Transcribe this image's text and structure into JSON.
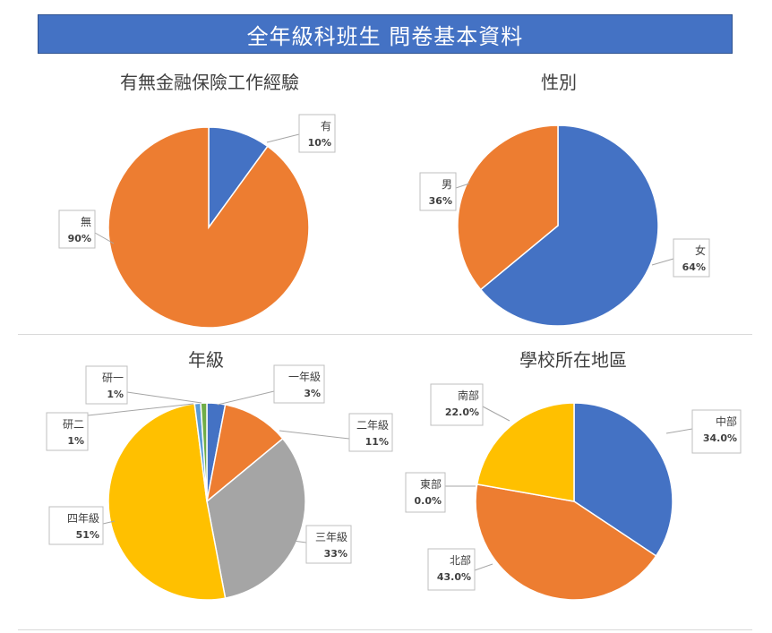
{
  "header": {
    "title": "全年級科班生 問卷基本資料"
  },
  "colors": {
    "blue": "#4472c4",
    "orange": "#ed7d31",
    "gray": "#a5a5a5",
    "yellow": "#ffc000",
    "lightblue": "#5b9bd5",
    "green": "#70ad47",
    "banner": "#4472c4"
  },
  "chart_data": [
    {
      "type": "pie",
      "title": "有無金融保險工作經驗",
      "labels": [
        "有",
        "無"
      ],
      "values": [
        10,
        90
      ],
      "value_labels": [
        "10%",
        "90%"
      ],
      "colors": [
        "#4472c4",
        "#ed7d31"
      ]
    },
    {
      "type": "pie",
      "title": "性別",
      "labels": [
        "女",
        "男"
      ],
      "values": [
        64,
        36
      ],
      "value_labels": [
        "64%",
        "36%"
      ],
      "colors": [
        "#4472c4",
        "#ed7d31"
      ]
    },
    {
      "type": "pie",
      "title": "年級",
      "labels": [
        "一年級",
        "二年級",
        "三年級",
        "四年級",
        "研二",
        "研一"
      ],
      "values": [
        3,
        11,
        33,
        51,
        1,
        1
      ],
      "value_labels": [
        "3%",
        "11%",
        "33%",
        "51%",
        "1%",
        "1%"
      ],
      "colors": [
        "#4472c4",
        "#ed7d31",
        "#a5a5a5",
        "#ffc000",
        "#5b9bd5",
        "#70ad47"
      ]
    },
    {
      "type": "pie",
      "title": "學校所在地區",
      "labels": [
        "中部",
        "北部",
        "東部",
        "南部"
      ],
      "values": [
        34.0,
        43.0,
        0.0,
        22.0
      ],
      "value_labels": [
        "34.0%",
        "43.0%",
        "0.0%",
        "22.0%"
      ],
      "colors": [
        "#4472c4",
        "#ed7d31",
        "#a5a5a5",
        "#ffc000"
      ]
    }
  ]
}
